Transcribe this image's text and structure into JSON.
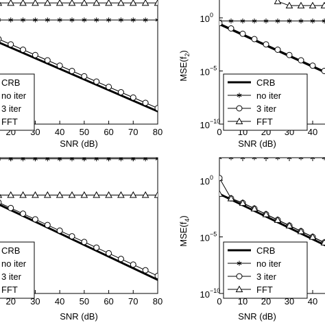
{
  "chart_data": [
    {
      "type": "line",
      "panel": "top-left",
      "title": "",
      "xlabel": "SNR (dB)",
      "ylabel": "",
      "xlim": [
        10,
        80
      ],
      "ylim": [
        -10,
        2
      ],
      "y_scale": "log10 exponent",
      "x_ticks": [
        20,
        30,
        40,
        50,
        60,
        70,
        80
      ],
      "x_tick_labels": [
        "20",
        "30",
        "40",
        "50",
        "60",
        "70",
        "80"
      ],
      "y_ticks": [],
      "y_tick_labels": [],
      "grid": false,
      "legend_position": "lower-left",
      "legend_entries": [
        "CRB",
        "no iter",
        "3 iter",
        "FFT"
      ],
      "series": [
        {
          "name": "CRB",
          "marker": "none",
          "x": [
            10,
            80
          ],
          "y": [
            -1.8,
            -8.8
          ]
        },
        {
          "name": "no iter",
          "marker": "asterisk",
          "x": [
            10,
            15,
            20,
            25,
            30,
            35,
            40,
            45,
            50,
            55,
            60,
            65,
            70,
            75,
            80
          ],
          "y": [
            -0.2,
            -0.2,
            -0.2,
            -0.2,
            -0.2,
            -0.2,
            -0.2,
            -0.2,
            -0.2,
            -0.2,
            -0.2,
            -0.2,
            -0.2,
            -0.2,
            -0.2
          ]
        },
        {
          "name": "3 iter",
          "marker": "circle",
          "x": [
            15,
            20,
            25,
            30,
            35,
            40,
            45,
            50,
            55,
            60,
            65,
            70,
            75,
            80
          ],
          "y": [
            -2.0,
            -2.5,
            -3.0,
            -3.5,
            -4.0,
            -4.5,
            -5.0,
            -5.5,
            -6.0,
            -6.5,
            -7.0,
            -7.5,
            -8.0,
            -8.5
          ]
        },
        {
          "name": "FFT",
          "marker": "triangle",
          "x": [
            10,
            15,
            20,
            25,
            30,
            35,
            40,
            45,
            50,
            55,
            60,
            65,
            70,
            75,
            80
          ],
          "y": [
            1.4,
            1.4,
            1.4,
            1.4,
            1.4,
            1.4,
            1.4,
            1.4,
            1.4,
            1.4,
            1.4,
            1.4,
            1.4,
            1.4,
            1.4
          ]
        }
      ]
    },
    {
      "type": "line",
      "panel": "top-right",
      "title": "",
      "xlabel": "SNR (dB)",
      "ylabel": "MSE(f2)",
      "ylabel_base": "MSE(f",
      "ylabel_sub": "2",
      "ylabel_end": ")",
      "xlim": [
        0,
        50
      ],
      "ylim": [
        -10,
        2
      ],
      "y_scale": "log10 exponent",
      "x_ticks": [
        0,
        10,
        20,
        30,
        40
      ],
      "x_tick_labels": [
        "0",
        "10",
        "20",
        "30",
        "40"
      ],
      "y_ticks": [
        0,
        -5,
        -10
      ],
      "y_tick_labels": [
        "10",
        "10",
        "10"
      ],
      "y_tick_exponents": [
        "0",
        "−5",
        "−10"
      ],
      "grid": false,
      "legend_position": "lower-left",
      "legend_entries": [
        "CRB",
        "no iter",
        "3 iter",
        "FFT"
      ],
      "series": [
        {
          "name": "CRB",
          "marker": "none",
          "x": [
            0,
            50
          ],
          "y": [
            -0.6,
            -5.6
          ]
        },
        {
          "name": "no iter",
          "marker": "asterisk",
          "x": [
            0,
            5,
            10,
            15,
            20,
            25,
            30,
            35,
            40,
            45
          ],
          "y": [
            -0.3,
            -0.3,
            -0.3,
            -0.3,
            -0.3,
            -0.3,
            -0.3,
            -0.3,
            -0.3,
            -0.3
          ]
        },
        {
          "name": "3 iter",
          "marker": "circle",
          "x": [
            0,
            5,
            10,
            15,
            20,
            25,
            30,
            35,
            40,
            45
          ],
          "y": [
            -0.5,
            -1.0,
            -1.5,
            -2.0,
            -2.5,
            -3.0,
            -3.5,
            -4.0,
            -4.5,
            -5.0
          ]
        },
        {
          "name": "FFT",
          "marker": "triangle",
          "x": [
            23,
            25,
            30,
            35,
            40,
            45
          ],
          "y": [
            2.0,
            1.55,
            1.15,
            1.15,
            1.15,
            1.15
          ]
        }
      ]
    },
    {
      "type": "line",
      "panel": "bottom-left",
      "title": "",
      "xlabel": "SNR (dB)",
      "ylabel": "",
      "xlim": [
        10,
        80
      ],
      "ylim": [
        -10,
        2
      ],
      "y_scale": "log10 exponent",
      "x_ticks": [
        20,
        30,
        40,
        50,
        60,
        70,
        80
      ],
      "x_tick_labels": [
        "20",
        "30",
        "40",
        "50",
        "60",
        "70",
        "80"
      ],
      "y_ticks": [],
      "y_tick_labels": [],
      "grid": false,
      "legend_position": "lower-left",
      "legend_entries": [
        "CRB",
        "no iter",
        "3 iter",
        "FFT"
      ],
      "series": [
        {
          "name": "CRB",
          "marker": "none",
          "x": [
            10,
            80
          ],
          "y": [
            -1.6,
            -8.8
          ]
        },
        {
          "name": "no iter",
          "marker": "asterisk",
          "x": [
            10,
            15,
            20,
            25,
            30,
            35,
            40,
            45,
            50,
            55,
            60,
            65,
            70,
            75,
            80
          ],
          "y": [
            1.9,
            1.9,
            1.9,
            1.9,
            1.9,
            1.9,
            1.9,
            1.9,
            1.9,
            1.9,
            1.9,
            1.9,
            1.9,
            1.9,
            1.9
          ]
        },
        {
          "name": "3 iter",
          "marker": "circle",
          "x": [
            15,
            20,
            25,
            30,
            35,
            40,
            45,
            50,
            55,
            60,
            65,
            70,
            75,
            80
          ],
          "y": [
            -1.95,
            -2.45,
            -2.95,
            -3.45,
            -3.95,
            -4.45,
            -4.95,
            -5.45,
            -5.95,
            -6.45,
            -6.95,
            -7.45,
            -7.95,
            -8.45
          ]
        },
        {
          "name": "FFT",
          "marker": "triangle",
          "x": [
            10,
            15,
            20,
            25,
            30,
            35,
            40,
            45,
            50,
            55,
            60,
            65,
            70,
            75,
            80
          ],
          "y": [
            -1.3,
            -1.3,
            -1.3,
            -1.3,
            -1.3,
            -1.3,
            -1.3,
            -1.3,
            -1.3,
            -1.3,
            -1.3,
            -1.3,
            -1.3,
            -1.3,
            -1.3
          ]
        }
      ]
    },
    {
      "type": "line",
      "panel": "bottom-right",
      "title": "",
      "xlabel": "SNR (dB)",
      "ylabel": "MSE(f4)",
      "ylabel_base": "MSE(f",
      "ylabel_sub": "4",
      "ylabel_end": ")",
      "xlim": [
        0,
        50
      ],
      "ylim": [
        -10,
        2
      ],
      "y_scale": "log10 exponent",
      "x_ticks": [
        0,
        10,
        20,
        30,
        40
      ],
      "x_tick_labels": [
        "0",
        "10",
        "20",
        "30",
        "40"
      ],
      "y_ticks": [
        0,
        -5,
        -10
      ],
      "y_tick_labels": [
        "10",
        "10",
        "10"
      ],
      "y_tick_exponents": [
        "0",
        "−5",
        "−10"
      ],
      "grid": false,
      "legend_position": "lower-left",
      "legend_entries": [
        "CRB",
        "no iter",
        "3 iter",
        "FFT"
      ],
      "series": [
        {
          "name": "CRB",
          "marker": "none",
          "x": [
            0,
            50
          ],
          "y": [
            -1.2,
            -6.2
          ]
        },
        {
          "name": "no iter",
          "marker": "asterisk",
          "x": [
            0,
            5,
            10,
            15,
            20,
            25,
            30,
            35,
            40,
            45
          ],
          "y": [
            2.0,
            2.0,
            2.0,
            2.0,
            2.0,
            2.0,
            2.0,
            2.0,
            2.0,
            2.0
          ]
        },
        {
          "name": "3 iter",
          "marker": "circle",
          "x": [
            0,
            5,
            10,
            15,
            20,
            25,
            30,
            35,
            40,
            45
          ],
          "y": [
            0.2,
            -1.6,
            -2.0,
            -2.5,
            -3.0,
            -3.5,
            -4.0,
            -4.5,
            -5.0,
            -5.5
          ]
        },
        {
          "name": "FFT",
          "marker": "triangle",
          "x": [
            0,
            5,
            10,
            15,
            20,
            25,
            30,
            35,
            40,
            45
          ],
          "y": [
            -1.2,
            -1.6,
            -2.0,
            -2.5,
            -3.0,
            -3.5,
            -4.0,
            -4.5,
            -5.0,
            -5.5
          ]
        }
      ]
    }
  ]
}
